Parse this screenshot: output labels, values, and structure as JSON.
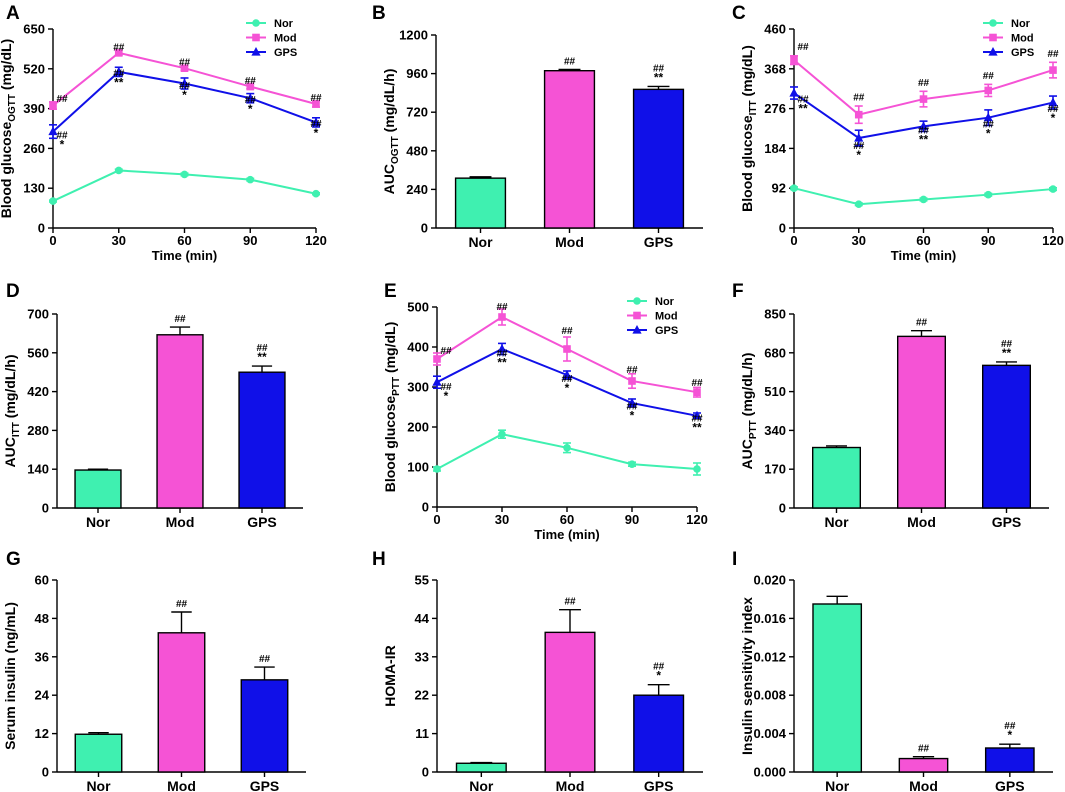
{
  "colors": {
    "nor": "#3ff0b0",
    "mod": "#f553d5",
    "gps": "#1010e8",
    "axis": "#000000"
  },
  "chart_data": [
    {
      "id": "A",
      "type": "line",
      "panel_label": "A",
      "title": "",
      "xlabel": "Time (min)",
      "ylabel": {
        "main": "Blood glucose",
        "sub": "OGTT",
        "unit": "(mg/dL)"
      },
      "x": [
        0,
        30,
        60,
        90,
        120
      ],
      "xticks": [
        "0",
        "30",
        "60",
        "90",
        "120"
      ],
      "xlim": [
        0,
        120
      ],
      "ylim": [
        0,
        650
      ],
      "yticks": [
        0,
        130,
        260,
        390,
        520,
        650
      ],
      "legend": [
        "Nor",
        "Mod",
        "GPS"
      ],
      "legend_position": "top-right",
      "series": [
        {
          "name": "Nor",
          "color_key": "nor",
          "marker": "circle",
          "values": [
            88,
            188,
            175,
            158,
            112
          ],
          "err": [
            3,
            4,
            4,
            4,
            3
          ]
        },
        {
          "name": "Mod",
          "color_key": "mod",
          "marker": "square",
          "values": [
            400,
            572,
            522,
            462,
            405
          ],
          "err": [
            12,
            8,
            7,
            7,
            10
          ]
        },
        {
          "name": "GPS",
          "color_key": "gps",
          "marker": "triangle",
          "values": [
            315,
            510,
            472,
            424,
            345
          ],
          "err": [
            22,
            15,
            18,
            15,
            15
          ]
        }
      ],
      "annotations": [
        {
          "x": 0,
          "y": 412,
          "lines": [
            "##"
          ]
        },
        {
          "x": 30,
          "y": 580,
          "lines": [
            "##"
          ]
        },
        {
          "x": 60,
          "y": 530,
          "lines": [
            "##"
          ]
        },
        {
          "x": 90,
          "y": 470,
          "lines": [
            "##"
          ]
        },
        {
          "x": 120,
          "y": 415,
          "lines": [
            "##"
          ]
        },
        {
          "x": 0,
          "y": 293,
          "lines": [
            "*",
            "##"
          ]
        },
        {
          "x": 30,
          "y": 495,
          "lines": [
            "**",
            "##"
          ]
        },
        {
          "x": 60,
          "y": 454,
          "lines": [
            "*",
            "##"
          ]
        },
        {
          "x": 90,
          "y": 409,
          "lines": [
            "*",
            "##"
          ]
        },
        {
          "x": 120,
          "y": 330,
          "lines": [
            "*",
            "##"
          ]
        }
      ]
    },
    {
      "id": "B",
      "type": "bar",
      "panel_label": "B",
      "title": "",
      "xlabel": "",
      "ylabel": {
        "main": "AUC",
        "sub": "OGTT",
        "unit": "(mg/dL/h)"
      },
      "categories": [
        "Nor",
        "Mod",
        "GPS"
      ],
      "color_keys": [
        "nor",
        "mod",
        "gps"
      ],
      "values": [
        310,
        978,
        862
      ],
      "err": [
        8,
        8,
        18
      ],
      "ylim": [
        0,
        1200
      ],
      "yticks": [
        0,
        240,
        480,
        720,
        960,
        1200
      ],
      "annotations": [
        [],
        [
          "##"
        ],
        [
          "##",
          "**"
        ]
      ]
    },
    {
      "id": "C",
      "type": "line",
      "panel_label": "C",
      "title": "",
      "xlabel": "Time (min)",
      "ylabel": {
        "main": "Blood glucose",
        "sub": "ITT",
        "unit": "(mg/dL)"
      },
      "x": [
        0,
        30,
        60,
        90,
        120
      ],
      "xticks": [
        "0",
        "30",
        "60",
        "90",
        "120"
      ],
      "xlim": [
        0,
        120
      ],
      "ylim": [
        0,
        460
      ],
      "yticks": [
        0,
        92,
        184,
        276,
        368,
        460
      ],
      "legend": [
        "Nor",
        "Mod",
        "GPS"
      ],
      "legend_position": "top-right",
      "series": [
        {
          "name": "Nor",
          "color_key": "nor",
          "marker": "circle",
          "values": [
            92,
            55,
            66,
            77,
            90
          ],
          "err": [
            3,
            3,
            3,
            3,
            3
          ]
        },
        {
          "name": "Mod",
          "color_key": "mod",
          "marker": "square",
          "values": [
            388,
            262,
            298,
            318,
            365
          ],
          "err": [
            10,
            20,
            18,
            14,
            18
          ]
        },
        {
          "name": "GPS",
          "color_key": "gps",
          "marker": "triangle",
          "values": [
            312,
            208,
            235,
            255,
            290
          ],
          "err": [
            14,
            18,
            12,
            18,
            15
          ]
        }
      ],
      "annotations": [
        {
          "x": 0,
          "y": 412,
          "lines": [
            "##"
          ]
        },
        {
          "x": 30,
          "y": 295,
          "lines": [
            "##"
          ]
        },
        {
          "x": 60,
          "y": 328,
          "lines": [
            "##"
          ]
        },
        {
          "x": 90,
          "y": 345,
          "lines": [
            "##"
          ]
        },
        {
          "x": 120,
          "y": 395,
          "lines": [
            "##"
          ]
        },
        {
          "x": 0,
          "y": 290,
          "lines": [
            "**",
            "##"
          ]
        },
        {
          "x": 30,
          "y": 183,
          "lines": [
            "*",
            "##"
          ]
        },
        {
          "x": 60,
          "y": 218,
          "lines": [
            "**",
            "##"
          ]
        },
        {
          "x": 90,
          "y": 232,
          "lines": [
            "*",
            "##"
          ]
        },
        {
          "x": 120,
          "y": 268,
          "lines": [
            "*",
            "##"
          ]
        }
      ]
    },
    {
      "id": "D",
      "type": "bar",
      "panel_label": "D",
      "title": "",
      "xlabel": "",
      "ylabel": {
        "main": "AUC",
        "sub": "ITT",
        "unit": "(mg/dL/h)"
      },
      "categories": [
        "Nor",
        "Mod",
        "GPS"
      ],
      "color_keys": [
        "nor",
        "mod",
        "gps"
      ],
      "values": [
        137,
        625,
        490
      ],
      "err": [
        3,
        28,
        22
      ],
      "ylim": [
        0,
        700
      ],
      "yticks": [
        0,
        140,
        280,
        420,
        560,
        700
      ],
      "annotations": [
        [],
        [
          "##"
        ],
        [
          "##",
          "**"
        ]
      ]
    },
    {
      "id": "E",
      "type": "line",
      "panel_label": "E",
      "title": "",
      "xlabel": "Time (min)",
      "ylabel": {
        "main": "Blood glucose",
        "sub": "PTT",
        "unit": "(mg/dL)"
      },
      "x": [
        0,
        30,
        60,
        90,
        120
      ],
      "xticks": [
        "0",
        "30",
        "60",
        "90",
        "120"
      ],
      "xlim": [
        0,
        120
      ],
      "ylim": [
        0,
        500
      ],
      "yticks": [
        0,
        100,
        200,
        300,
        400,
        500
      ],
      "legend": [
        "Nor",
        "Mod",
        "GPS"
      ],
      "legend_position": "top-right",
      "series": [
        {
          "name": "Nor",
          "color_key": "nor",
          "marker": "circle",
          "values": [
            95,
            182,
            148,
            107,
            95
          ],
          "err": [
            5,
            10,
            12,
            5,
            15
          ]
        },
        {
          "name": "Mod",
          "color_key": "mod",
          "marker": "square",
          "values": [
            370,
            475,
            395,
            315,
            287
          ],
          "err": [
            15,
            20,
            30,
            18,
            12
          ]
        },
        {
          "name": "GPS",
          "color_key": "gps",
          "marker": "triangle",
          "values": [
            312,
            395,
            330,
            260,
            228
          ],
          "err": [
            15,
            14,
            10,
            10,
            7
          ]
        }
      ],
      "annotations": [
        {
          "x": 0,
          "y": 382,
          "lines": [
            "##"
          ]
        },
        {
          "x": 30,
          "y": 492,
          "lines": [
            "##"
          ]
        },
        {
          "x": 60,
          "y": 432,
          "lines": [
            "##"
          ]
        },
        {
          "x": 90,
          "y": 335,
          "lines": [
            "##"
          ]
        },
        {
          "x": 120,
          "y": 302,
          "lines": [
            "##"
          ]
        },
        {
          "x": 0,
          "y": 292,
          "lines": [
            "*",
            "##"
          ]
        },
        {
          "x": 30,
          "y": 376,
          "lines": [
            "**",
            "##"
          ]
        },
        {
          "x": 60,
          "y": 312,
          "lines": [
            "*",
            "##"
          ]
        },
        {
          "x": 90,
          "y": 244,
          "lines": [
            "*",
            "##"
          ]
        },
        {
          "x": 120,
          "y": 214,
          "lines": [
            "**",
            "##"
          ]
        }
      ]
    },
    {
      "id": "F",
      "type": "bar",
      "panel_label": "F",
      "title": "",
      "xlabel": "",
      "ylabel": {
        "main": "AUC",
        "sub": "PTT",
        "unit": "(mg/dL/h)"
      },
      "categories": [
        "Nor",
        "Mod",
        "GPS"
      ],
      "color_keys": [
        "nor",
        "mod",
        "gps"
      ],
      "values": [
        265,
        752,
        625
      ],
      "err": [
        7,
        25,
        15
      ],
      "ylim": [
        0,
        850
      ],
      "yticks": [
        0,
        170,
        340,
        510,
        680,
        850
      ],
      "annotations": [
        [],
        [
          "##"
        ],
        [
          "##",
          "**"
        ]
      ]
    },
    {
      "id": "G",
      "type": "bar",
      "panel_label": "G",
      "title": "",
      "xlabel": "",
      "ylabel": {
        "main": "Serum insulin",
        "sub": "",
        "unit": "(ng/mL)"
      },
      "categories": [
        "Nor",
        "Mod",
        "GPS"
      ],
      "color_keys": [
        "nor",
        "mod",
        "gps"
      ],
      "values": [
        11.8,
        43.5,
        28.8
      ],
      "err": [
        0.5,
        6.5,
        4.0
      ],
      "ylim": [
        0,
        60
      ],
      "yticks": [
        0,
        12,
        24,
        36,
        48,
        60
      ],
      "annotations": [
        [],
        [
          "##"
        ],
        [
          "##"
        ]
      ]
    },
    {
      "id": "H",
      "type": "bar",
      "panel_label": "H",
      "title": "",
      "xlabel": "",
      "ylabel": {
        "main": "HOMA-IR",
        "sub": "",
        "unit": ""
      },
      "categories": [
        "Nor",
        "Mod",
        "GPS"
      ],
      "color_keys": [
        "nor",
        "mod",
        "gps"
      ],
      "values": [
        2.5,
        40.0,
        22.0
      ],
      "err": [
        0.2,
        6.5,
        3.0
      ],
      "ylim": [
        0,
        55
      ],
      "yticks": [
        0,
        11,
        22,
        33,
        44,
        55
      ],
      "annotations": [
        [],
        [
          "##"
        ],
        [
          "##",
          "*"
        ]
      ]
    },
    {
      "id": "I",
      "type": "bar",
      "panel_label": "I",
      "title": "",
      "xlabel": "",
      "ylabel": {
        "main": "Insulin sensitivity index",
        "sub": "",
        "unit": ""
      },
      "categories": [
        "Nor",
        "Mod",
        "GPS"
      ],
      "color_keys": [
        "nor",
        "mod",
        "gps"
      ],
      "values": [
        0.0175,
        0.0014,
        0.0025
      ],
      "err": [
        0.0008,
        0.0002,
        0.0004
      ],
      "ylim": [
        0,
        0.02
      ],
      "yticks": [
        "0.000",
        "0.004",
        "0.008",
        "0.012",
        "0.016",
        "0.020"
      ],
      "annotations": [
        [],
        [
          "##"
        ],
        [
          "##",
          "*"
        ]
      ]
    }
  ]
}
